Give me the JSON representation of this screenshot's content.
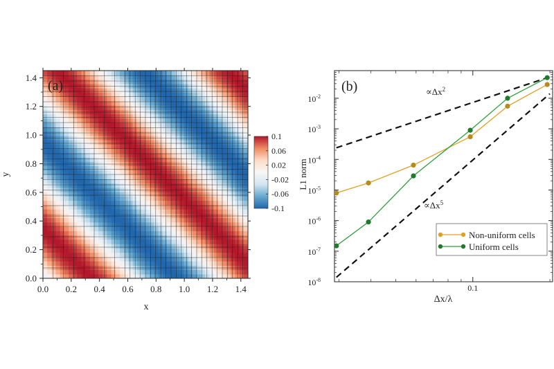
{
  "chart_data": [
    {
      "type": "heatmap",
      "panel_label": "(a)",
      "xlabel": "x",
      "ylabel": "y",
      "xlim": [
        0.0,
        1.45
      ],
      "ylim": [
        0.0,
        1.45
      ],
      "xticks": [
        "0.0",
        "0.2",
        "0.4",
        "0.6",
        "0.8",
        "1.0",
        "1.2",
        "1.4"
      ],
      "yticks": [
        "0.0",
        "0.2",
        "0.4",
        "0.6",
        "0.8",
        "1.0",
        "1.2",
        "1.4"
      ],
      "field": {
        "amplitude": 0.1,
        "wave_vector": [
          5.2,
          5.2
        ],
        "phase": -1.8
      },
      "colorbar": {
        "range": [
          -0.1,
          0.1
        ],
        "ticks": [
          "0.1",
          "0.06",
          "0.02",
          "-0.02",
          "-0.06",
          "-0.1"
        ],
        "colors": [
          "#b2182b",
          "#ef8a62",
          "#fddbc7",
          "#f7f7f7",
          "#d1e5f0",
          "#67a9cf",
          "#2166ac"
        ]
      },
      "grid": {
        "overlay": true,
        "coarse_spacing": 0.0725,
        "fine_spacing": 0.03625,
        "fine_band_start": 0.58
      }
    },
    {
      "type": "line",
      "panel_label": "(b)",
      "xlabel": "Δx/λ",
      "ylabel": "L1 norm",
      "x_scale": "log",
      "y_scale": "log",
      "xlim": [
        0.0288,
        0.205
      ],
      "ylim": [
        1e-08,
        0.08
      ],
      "xtick_labels": [
        {
          "value": 0.1,
          "label": "0.1"
        }
      ],
      "ytick_labels": [
        {
          "exp": -8,
          "label": "10-8"
        },
        {
          "exp": -7,
          "label": "10-7"
        },
        {
          "exp": -6,
          "label": "10-6"
        },
        {
          "exp": -5,
          "label": "10-5"
        },
        {
          "exp": -4,
          "label": "10-4"
        },
        {
          "exp": -3,
          "label": "10-3"
        },
        {
          "exp": -2,
          "label": "10-2"
        }
      ],
      "series": [
        {
          "name": "Non-uniform cells",
          "color": "#e0a020",
          "x": [
            0.0293,
            0.0391,
            0.0586,
            0.0977,
            0.1367,
            0.1953
          ],
          "y": [
            8e-06,
            1.7e-05,
            6.5e-05,
            0.00055,
            0.0055,
            0.028
          ]
        },
        {
          "name": "Uniform cells",
          "color": "#2e9e3a",
          "x": [
            0.0293,
            0.0391,
            0.0586,
            0.0977,
            0.1367,
            0.1953
          ],
          "y": [
            1.5e-07,
            9e-07,
            2.9e-05,
            0.0009,
            0.01,
            0.047
          ]
        }
      ],
      "reference_lines": [
        {
          "label": "∝Δx",
          "superscript": "2",
          "x": [
            0.0293,
            0.2
          ],
          "y": [
            0.00024,
            0.05
          ]
        },
        {
          "label": "∝Δx",
          "superscript": "5",
          "x": [
            0.0293,
            0.2
          ],
          "y": [
            1.4e-08,
            0.014
          ]
        }
      ],
      "legend_position": "lower-right"
    }
  ]
}
